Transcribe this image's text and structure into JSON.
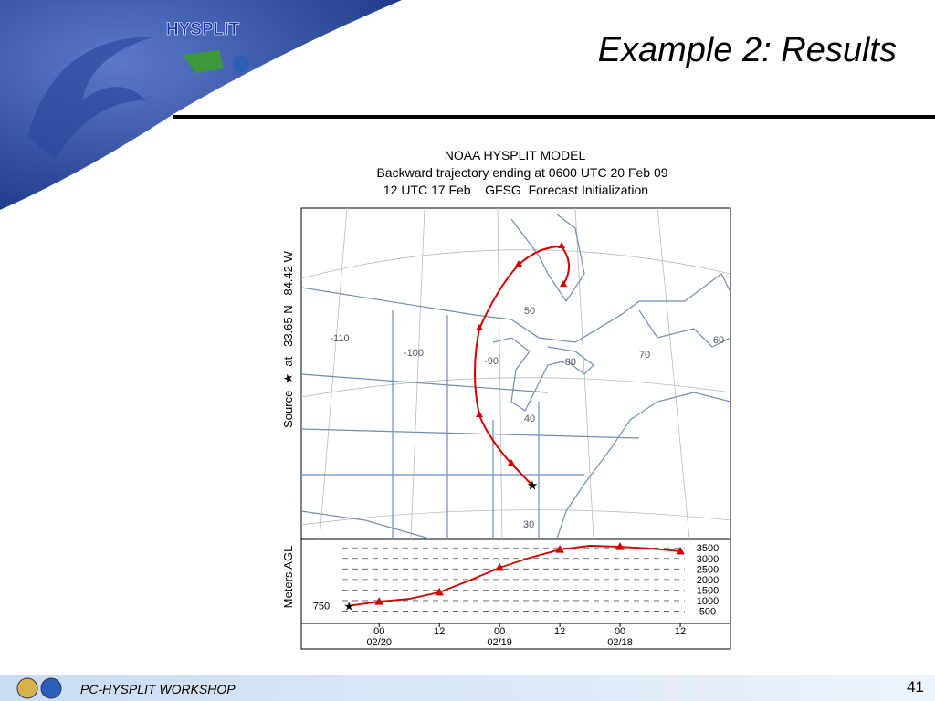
{
  "slide": {
    "title": "Example 2: Results",
    "logo": "HYSPLIT",
    "footer": "PC-HYSPLIT WORKSHOP",
    "page_number": "41"
  },
  "map": {
    "title": "NOAA HYSPLIT MODEL",
    "subtitle": "Backward trajectory ending at 0600 UTC 20 Feb 09",
    "initialization": "12 UTC 17 Feb    GFSG  Forecast Initialization",
    "source_label": "Source  ★  at   33.65 N   84.42 W",
    "grid_labels": [
      "50",
      "40",
      "30",
      "-110",
      "-100",
      "-90",
      "-80",
      "70",
      "60"
    ]
  },
  "chart_data": {
    "type": "line",
    "y_label": "Meters AGL",
    "x": [
      0,
      6,
      12,
      18,
      24,
      30,
      36,
      42,
      48,
      54,
      60,
      66
    ],
    "series": [
      {
        "color": "#d40000",
        "values": [
          750,
          950,
          1080,
          1390,
          1950,
          2560,
          3030,
          3420,
          3600,
          3550,
          3470,
          3340
        ]
      }
    ],
    "xlim": [
      -9.5,
      76
    ],
    "xticks": [
      {
        "value": 6,
        "label": "00"
      },
      {
        "value": 18,
        "label": "12"
      },
      {
        "value": 30,
        "label": "00"
      },
      {
        "value": 42,
        "label": "12"
      },
      {
        "value": 54,
        "label": "00"
      },
      {
        "value": 66,
        "label": "12"
      }
    ],
    "xtick_dates": [
      {
        "value": 6,
        "label": "02/20"
      },
      {
        "value": 30,
        "label": "02/19"
      },
      {
        "value": 54,
        "label": "02/18"
      }
    ],
    "ylim": [
      0,
      3900
    ],
    "yticks": [
      500,
      1000,
      1500,
      2000,
      2500,
      3000,
      3500
    ],
    "grid": true
  }
}
